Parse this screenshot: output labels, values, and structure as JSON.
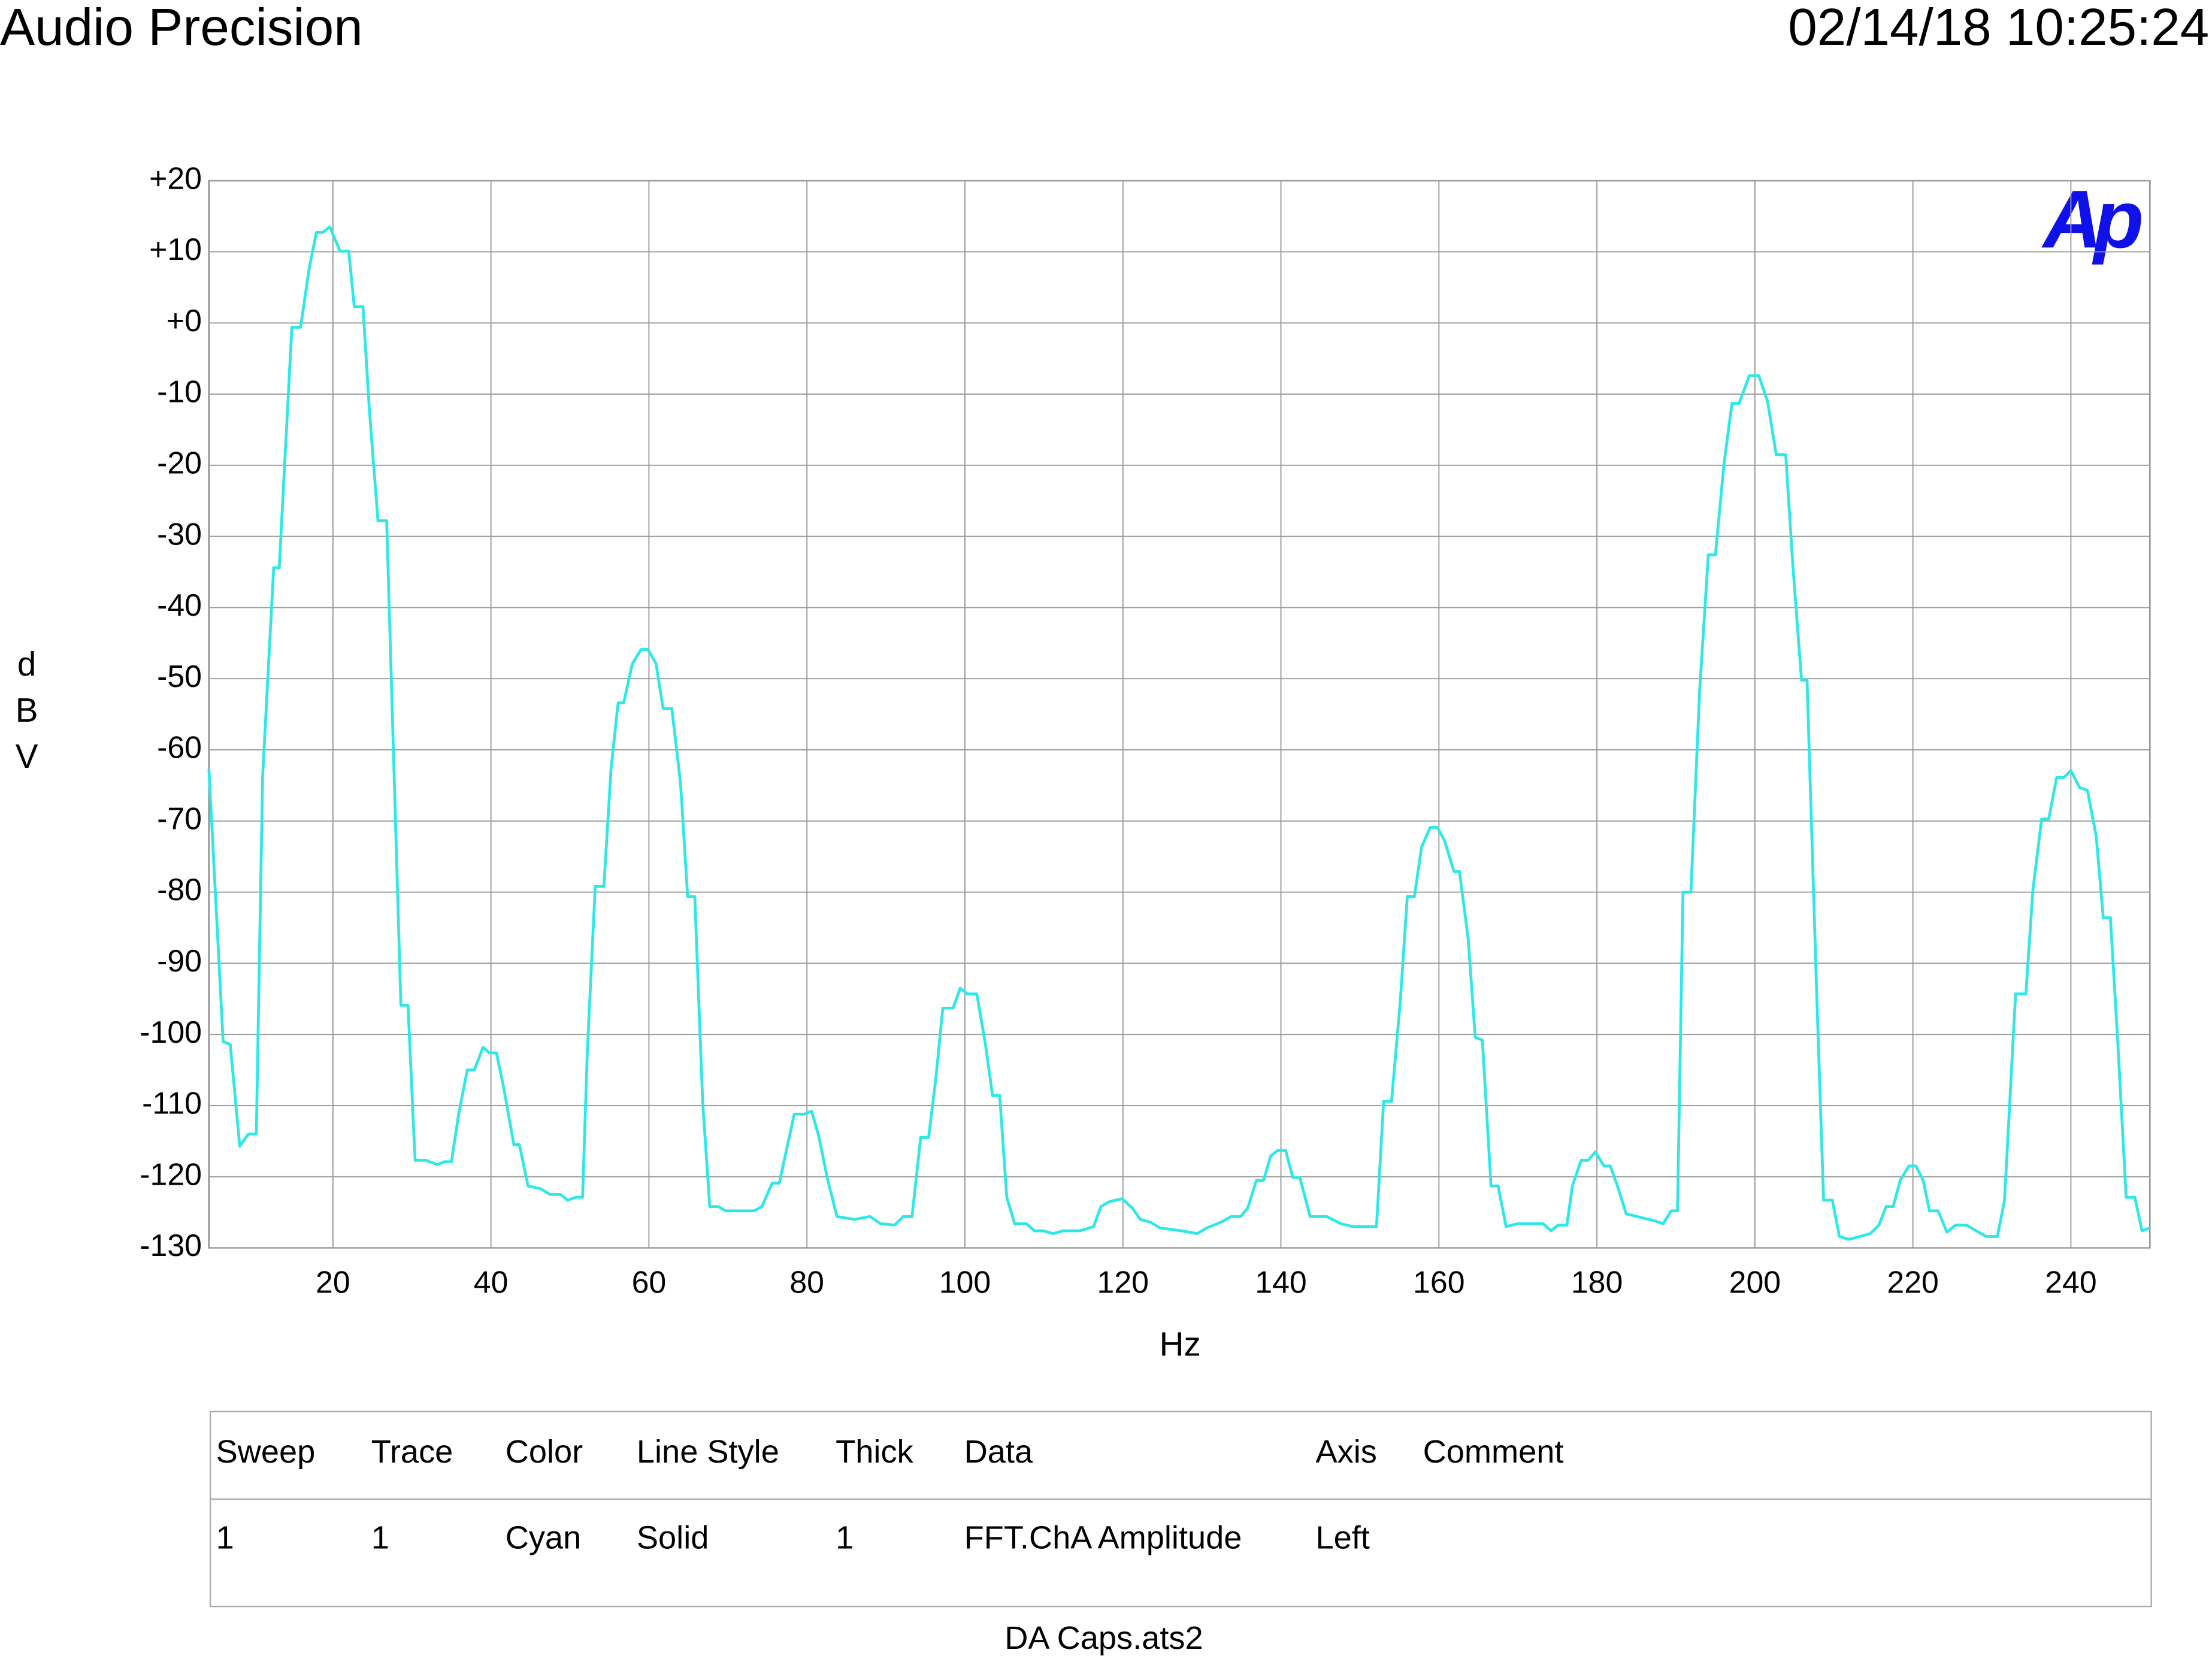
{
  "header": {
    "brand": "Audio Precision",
    "timestamp": "02/14/18 10:25:24",
    "logo": "Ap"
  },
  "chart_data": {
    "type": "line",
    "xlabel": "Hz",
    "ylabel": "dBV",
    "color": "#2ee8e8",
    "grid": true,
    "xlim": [
      4.3,
      250
    ],
    "ylim": [
      -130,
      20
    ],
    "xticks": [
      20,
      40,
      60,
      80,
      100,
      120,
      140,
      160,
      180,
      200,
      220,
      240
    ],
    "yticks": [
      {
        "value": 20,
        "label": "+20"
      },
      {
        "value": 10,
        "label": "+10"
      },
      {
        "value": 0,
        "label": "+0"
      },
      -10,
      -20,
      -30,
      -40,
      -50,
      -60,
      -70,
      -80,
      -90,
      -100,
      -110,
      -120,
      -130
    ],
    "x": [
      4.3,
      6.1,
      7,
      8.2,
      9.3,
      10.3,
      11.1,
      12.5,
      13.2,
      14.8,
      15.9,
      17,
      17.9,
      18.7,
      19.6,
      20.9,
      22,
      22.7,
      23.8,
      24.6,
      25.7,
      26.8,
      28.6,
      29.5,
      30.4,
      31.8,
      33.2,
      34.1,
      35,
      35.9,
      37,
      37.9,
      39,
      39.8,
      40.7,
      41.6,
      42.9,
      43.6,
      44.7,
      46.3,
      47.5,
      48.8,
      49.7,
      50.7,
      51.6,
      52.2,
      53.2,
      54.3,
      55.2,
      56.1,
      56.8,
      57.9,
      59,
      59.9,
      60.9,
      61.8,
      62.9,
      64,
      64.9,
      65.8,
      66.8,
      67.7,
      68.8,
      69.7,
      73.3,
      74.3,
      75.6,
      76.5,
      77.4,
      78.4,
      79.7,
      80.6,
      81.5,
      82.6,
      83.8,
      86,
      88,
      89.3,
      91.1,
      92.2,
      93.3,
      94.4,
      95.4,
      96.3,
      97.2,
      98.5,
      99.4,
      100.3,
      101.5,
      102.6,
      103.5,
      104.4,
      105.3,
      106.3,
      107.8,
      108.8,
      109.9,
      111.2,
      112.4,
      114.6,
      116.3,
      117.2,
      118.3,
      119.9,
      121.2,
      122.2,
      123.5,
      124.7,
      127.4,
      129.4,
      130.6,
      132.4,
      133.7,
      134.9,
      135.8,
      136.9,
      137.8,
      138.7,
      139.6,
      140.6,
      141.5,
      142.4,
      143.7,
      145.8,
      147.6,
      149,
      152.1,
      153,
      154,
      155.1,
      156,
      156.9,
      157.8,
      158.9,
      159.8,
      160.7,
      161.9,
      162.6,
      163.7,
      164.6,
      165.5,
      166.6,
      167.5,
      168.5,
      170,
      173.2,
      174.2,
      175.1,
      176.2,
      176.9,
      178,
      178.9,
      179.8,
      180.9,
      181.7,
      182.6,
      183.7,
      185.1,
      187.3,
      188.4,
      189.4,
      190.2,
      190.9,
      191.9,
      193,
      194.1,
      195,
      196.1,
      197.1,
      198,
      199.3,
      200.5,
      201.6,
      202.7,
      203.9,
      204.8,
      205.9,
      206.6,
      207.8,
      208.7,
      209.8,
      210.7,
      211.9,
      213.3,
      214.6,
      215.7,
      216.6,
      217.5,
      218.4,
      219.5,
      220.4,
      221.3,
      222.1,
      223.2,
      224.3,
      225.4,
      226.8,
      228,
      229.3,
      230.7,
      231.6,
      233,
      234.3,
      235.2,
      236.3,
      237.2,
      238.2,
      239.1,
      240,
      241.1,
      242.1,
      243.2,
      244.1,
      245,
      245.9,
      247,
      248.1,
      249,
      250
    ],
    "values": [
      -62.7,
      -101,
      -101.4,
      -115.7,
      -114,
      -114,
      -63.7,
      -34.4,
      -34.4,
      -0.6,
      -0.6,
      7.7,
      12.7,
      12.7,
      13.5,
      10.1,
      10.1,
      2.3,
      2.3,
      -12,
      -27.8,
      -27.8,
      -95.9,
      -95.9,
      -117.7,
      -117.7,
      -118.3,
      -117.9,
      -117.9,
      -111.3,
      -105,
      -105,
      -101.8,
      -102.6,
      -102.6,
      -107.4,
      -115.5,
      -115.5,
      -121.3,
      -121.7,
      -122.5,
      -122.5,
      -123.3,
      -122.9,
      -122.9,
      -102.4,
      -79.2,
      -79.2,
      -62.7,
      -53.4,
      -53.4,
      -47.9,
      -45.9,
      -45.9,
      -47.9,
      -54.2,
      -54.2,
      -64.7,
      -80.6,
      -80.6,
      -109.4,
      -124.2,
      -124.2,
      -124.8,
      -124.8,
      -124.2,
      -120.9,
      -120.9,
      -116.3,
      -111.2,
      -111.2,
      -110.8,
      -114.3,
      -120.3,
      -125.6,
      -126,
      -125.6,
      -126.6,
      -126.8,
      -125.6,
      -125.6,
      -114.5,
      -114.5,
      -106.4,
      -96.3,
      -96.3,
      -93.5,
      -94.3,
      -94.3,
      -101.4,
      -108.6,
      -108.6,
      -122.9,
      -126.6,
      -126.6,
      -127.6,
      -127.6,
      -128,
      -127.6,
      -127.6,
      -127,
      -124.2,
      -123.5,
      -123.1,
      -124.4,
      -126,
      -126.4,
      -127.2,
      -127.6,
      -128,
      -127.2,
      -126.4,
      -125.6,
      -125.6,
      -124.4,
      -120.5,
      -120.5,
      -117.1,
      -116.3,
      -116.3,
      -120.1,
      -120.1,
      -125.6,
      -125.6,
      -126.6,
      -127,
      -127,
      -109.4,
      -109.4,
      -95.5,
      -80.6,
      -80.6,
      -73.7,
      -70.9,
      -70.9,
      -72.7,
      -77.1,
      -77.1,
      -86.5,
      -100.4,
      -100.8,
      -121.3,
      -121.3,
      -127,
      -126.6,
      -126.6,
      -127.6,
      -126.8,
      -126.8,
      -121.3,
      -117.7,
      -117.7,
      -116.5,
      -118.5,
      -118.5,
      -121.3,
      -125.2,
      -125.6,
      -126.2,
      -126.6,
      -124.8,
      -124.8,
      -80,
      -80,
      -51.8,
      -32.6,
      -32.6,
      -19.7,
      -11.3,
      -11.3,
      -7.4,
      -7.4,
      -11,
      -18.5,
      -18.5,
      -34,
      -50.2,
      -50.2,
      -93.5,
      -123.3,
      -123.3,
      -128.4,
      -128.8,
      -128.4,
      -128,
      -126.8,
      -124.2,
      -124.2,
      -120.5,
      -118.5,
      -118.5,
      -120.5,
      -124.8,
      -124.8,
      -127.8,
      -126.8,
      -126.8,
      -127.6,
      -128.4,
      -128.4,
      -123.3,
      -94.3,
      -94.3,
      -79.6,
      -69.7,
      -69.7,
      -63.9,
      -63.9,
      -62.9,
      -65.3,
      -65.7,
      -72.1,
      -83.6,
      -83.6,
      -100.4,
      -122.9,
      -122.9,
      -127.6,
      -127.2
    ]
  },
  "legend_table": {
    "headers": [
      "Sweep",
      "Trace",
      "Color",
      "Line Style",
      "Thick",
      "Data",
      "Axis",
      "Comment"
    ],
    "rows": [
      [
        "1",
        "1",
        "Cyan",
        "Solid",
        "1",
        "FFT.ChA Amplitude",
        "Left"
      ]
    ]
  },
  "footer": "DA Caps.ats2"
}
